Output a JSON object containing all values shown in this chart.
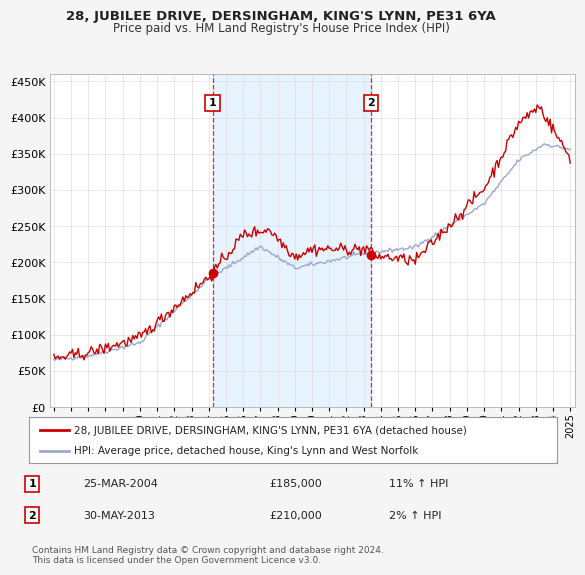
{
  "title": "28, JUBILEE DRIVE, DERSINGHAM, KING'S LYNN, PE31 6YA",
  "subtitle": "Price paid vs. HM Land Registry's House Price Index (HPI)",
  "legend_line1": "28, JUBILEE DRIVE, DERSINGHAM, KING'S LYNN, PE31 6YA (detached house)",
  "legend_line2": "HPI: Average price, detached house, King's Lynn and West Norfolk",
  "annotation1_date": "25-MAR-2004",
  "annotation1_price": "£185,000",
  "annotation1_hpi": "11% ↑ HPI",
  "annotation2_date": "30-MAY-2013",
  "annotation2_price": "£210,000",
  "annotation2_hpi": "2% ↑ HPI",
  "footer": "Contains HM Land Registry data © Crown copyright and database right 2024.\nThis data is licensed under the Open Government Licence v3.0.",
  "ytick_values": [
    0,
    50000,
    100000,
    150000,
    200000,
    250000,
    300000,
    350000,
    400000,
    450000
  ],
  "red_color": "#cc0000",
  "blue_color": "#99aacc",
  "shade_color": "#ddeeff",
  "background_color": "#f5f5f5",
  "plot_bg_color": "#ffffff",
  "sale1_year": 2004.23,
  "sale1_value": 185000,
  "sale2_year": 2013.42,
  "sale2_value": 210000
}
